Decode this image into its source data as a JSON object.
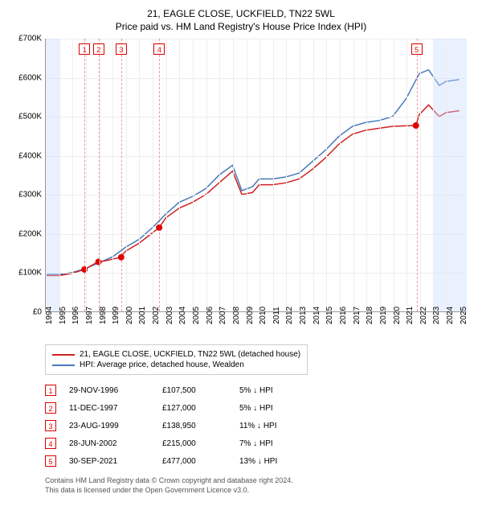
{
  "title": "21, EAGLE CLOSE, UCKFIELD, TN22 5WL",
  "subtitle": "Price paid vs. HM Land Registry's House Price Index (HPI)",
  "chart": {
    "type": "line",
    "x_min": 1994,
    "x_max": 2025.5,
    "y_min": 0,
    "y_max": 700000,
    "y_ticks": [
      0,
      100000,
      200000,
      300000,
      400000,
      500000,
      600000,
      700000
    ],
    "y_tick_labels": [
      "£0",
      "£100K",
      "£200K",
      "£300K",
      "£400K",
      "£500K",
      "£600K",
      "£700K"
    ],
    "x_ticks": [
      1994,
      1995,
      1996,
      1997,
      1998,
      1999,
      2000,
      2001,
      2002,
      2003,
      2004,
      2005,
      2006,
      2007,
      2008,
      2009,
      2010,
      2011,
      2012,
      2013,
      2014,
      2015,
      2016,
      2017,
      2018,
      2019,
      2020,
      2021,
      2022,
      2023,
      2024,
      2025
    ],
    "grid_color": "#eeeeee",
    "band_color": "rgba(200,220,255,0.4)",
    "bands": [
      [
        1994,
        1995
      ],
      [
        2023,
        2025.5
      ]
    ],
    "series": [
      {
        "name": "hpi",
        "color": "#4878b8",
        "width": 1.5,
        "points": [
          [
            1994,
            95000
          ],
          [
            1995,
            95000
          ],
          [
            1996,
            100000
          ],
          [
            1997,
            110000
          ],
          [
            1998,
            125000
          ],
          [
            1999,
            140000
          ],
          [
            2000,
            165000
          ],
          [
            2001,
            185000
          ],
          [
            2002,
            215000
          ],
          [
            2003,
            250000
          ],
          [
            2004,
            280000
          ],
          [
            2005,
            295000
          ],
          [
            2006,
            315000
          ],
          [
            2007,
            350000
          ],
          [
            2008,
            375000
          ],
          [
            2008.7,
            310000
          ],
          [
            2009.5,
            320000
          ],
          [
            2010,
            340000
          ],
          [
            2011,
            340000
          ],
          [
            2012,
            345000
          ],
          [
            2013,
            355000
          ],
          [
            2014,
            385000
          ],
          [
            2015,
            415000
          ],
          [
            2016,
            450000
          ],
          [
            2017,
            475000
          ],
          [
            2018,
            485000
          ],
          [
            2019,
            490000
          ],
          [
            2020,
            500000
          ],
          [
            2021,
            545000
          ],
          [
            2022,
            610000
          ],
          [
            2022.7,
            620000
          ],
          [
            2023.5,
            580000
          ],
          [
            2024,
            590000
          ],
          [
            2025,
            595000
          ]
        ]
      },
      {
        "name": "price",
        "color": "#d02020",
        "width": 1.5,
        "points": [
          [
            1994,
            92000
          ],
          [
            1995,
            92000
          ],
          [
            1996,
            98000
          ],
          [
            1996.9,
            107500
          ],
          [
            1997.9,
            127000
          ],
          [
            1998.5,
            130000
          ],
          [
            1999.6,
            138950
          ],
          [
            2000,
            155000
          ],
          [
            2001,
            175000
          ],
          [
            2002.5,
            215000
          ],
          [
            2003,
            240000
          ],
          [
            2004,
            265000
          ],
          [
            2005,
            280000
          ],
          [
            2006,
            300000
          ],
          [
            2007,
            330000
          ],
          [
            2008,
            360000
          ],
          [
            2008.7,
            300000
          ],
          [
            2009.5,
            305000
          ],
          [
            2010,
            325000
          ],
          [
            2011,
            325000
          ],
          [
            2012,
            330000
          ],
          [
            2013,
            340000
          ],
          [
            2014,
            365000
          ],
          [
            2015,
            395000
          ],
          [
            2016,
            430000
          ],
          [
            2017,
            455000
          ],
          [
            2018,
            465000
          ],
          [
            2019,
            470000
          ],
          [
            2020,
            475000
          ],
          [
            2021.75,
            477000
          ],
          [
            2022,
            505000
          ],
          [
            2022.7,
            530000
          ],
          [
            2023.5,
            500000
          ],
          [
            2024,
            510000
          ],
          [
            2025,
            515000
          ]
        ]
      }
    ],
    "markers": [
      {
        "n": "1",
        "x": 1996.9,
        "y": 107500
      },
      {
        "n": "2",
        "x": 1997.95,
        "y": 127000
      },
      {
        "n": "3",
        "x": 1999.65,
        "y": 138950
      },
      {
        "n": "4",
        "x": 2002.5,
        "y": 215000
      },
      {
        "n": "5",
        "x": 2021.75,
        "y": 477000
      }
    ]
  },
  "legend": [
    {
      "color": "#d02020",
      "label": "21, EAGLE CLOSE, UCKFIELD, TN22 5WL (detached house)"
    },
    {
      "color": "#4878b8",
      "label": "HPI: Average price, detached house, Wealden"
    }
  ],
  "sales": [
    {
      "n": "1",
      "date": "29-NOV-1996",
      "price": "£107,500",
      "pct": "5% ↓ HPI"
    },
    {
      "n": "2",
      "date": "11-DEC-1997",
      "price": "£127,000",
      "pct": "5% ↓ HPI"
    },
    {
      "n": "3",
      "date": "23-AUG-1999",
      "price": "£138,950",
      "pct": "11% ↓ HPI"
    },
    {
      "n": "4",
      "date": "28-JUN-2002",
      "price": "£215,000",
      "pct": "7% ↓ HPI"
    },
    {
      "n": "5",
      "date": "30-SEP-2021",
      "price": "£477,000",
      "pct": "13% ↓ HPI"
    }
  ],
  "footer1": "Contains HM Land Registry data © Crown copyright and database right 2024.",
  "footer2": "This data is licensed under the Open Government Licence v3.0."
}
